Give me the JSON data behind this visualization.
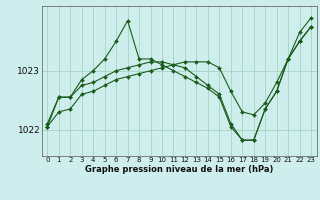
{
  "title": "Graphe pression niveau de la mer (hPa)",
  "background_color": "#ceeeed",
  "grid_color": "#9ecfb8",
  "line_color": "#1a5c1a",
  "x_ticks": [
    0,
    1,
    2,
    3,
    4,
    5,
    6,
    7,
    8,
    9,
    10,
    11,
    12,
    13,
    14,
    15,
    16,
    17,
    18,
    19,
    20,
    21,
    22,
    23
  ],
  "ylim": [
    1021.55,
    1024.1
  ],
  "yticks": [
    1022,
    1023
  ],
  "figsize": [
    3.2,
    2.0
  ],
  "dpi": 100,
  "line1_y": [
    1022.05,
    1022.55,
    1022.55,
    1022.75,
    1022.8,
    1022.9,
    1023.0,
    1023.05,
    1023.1,
    1023.15,
    1023.15,
    1023.1,
    1023.05,
    1022.9,
    1022.75,
    1022.6,
    1022.1,
    1021.82,
    1021.82,
    1022.35,
    1022.65,
    1023.2,
    1023.5,
    1023.75
  ],
  "line2_y": [
    1022.1,
    1022.55,
    1022.55,
    1022.85,
    1023.0,
    1023.2,
    1023.5,
    1023.85,
    1023.2,
    1023.2,
    1023.1,
    1023.0,
    1022.9,
    1022.8,
    1022.7,
    1022.55,
    1022.05,
    1021.82,
    1021.82,
    1022.35,
    1022.65,
    1023.2,
    1023.5,
    1023.75
  ],
  "line3_y": [
    1022.05,
    1022.3,
    1022.35,
    1022.6,
    1022.65,
    1022.75,
    1022.85,
    1022.9,
    1022.95,
    1023.0,
    1023.05,
    1023.1,
    1023.15,
    1023.15,
    1023.15,
    1023.05,
    1022.65,
    1022.3,
    1022.25,
    1022.45,
    1022.8,
    1023.2,
    1023.65,
    1023.9
  ]
}
